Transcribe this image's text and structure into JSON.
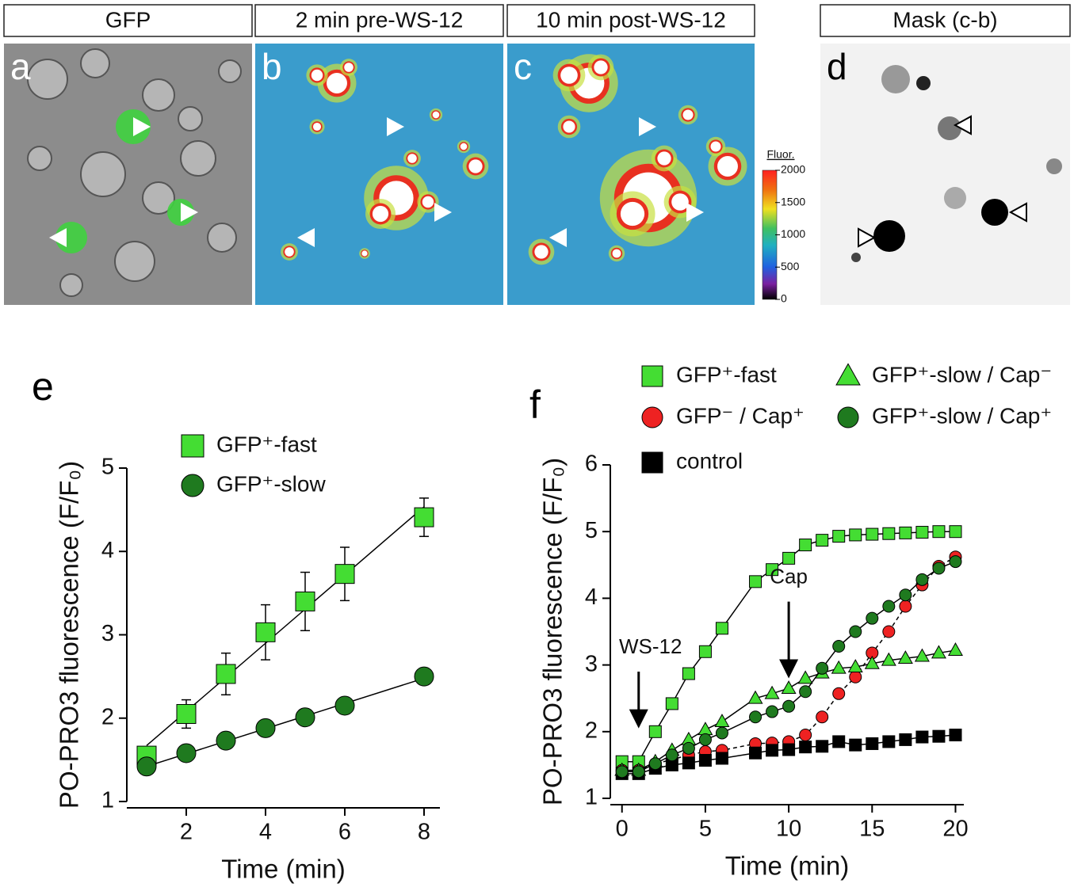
{
  "panels": [
    {
      "header": "GFP",
      "letter": "a"
    },
    {
      "header": "2 min pre-WS-12",
      "letter": "b"
    },
    {
      "header": "10 min post-WS-12",
      "letter": "c"
    },
    {
      "header": "Mask (c-b)",
      "letter": "d"
    }
  ],
  "colorbar": {
    "title": "Fluor.",
    "ticks": [
      0,
      500,
      1000,
      1500,
      2000
    ]
  },
  "chart_data": [
    {
      "type": "line",
      "panel_label": "e",
      "xlabel": "Time (min)",
      "ylabel": "PO-PRO3 fluorescence (F/F₀)",
      "x": [
        1,
        2,
        3,
        4,
        5,
        6,
        8
      ],
      "series": [
        {
          "name": "GFP⁺-fast",
          "color": "#44dd33",
          "marker": "square",
          "values": [
            1.55,
            2.05,
            2.53,
            3.03,
            3.4,
            3.73,
            4.41
          ],
          "errors": [
            0.1,
            0.17,
            0.25,
            0.33,
            0.35,
            0.32,
            0.23
          ]
        },
        {
          "name": "GFP⁺-slow",
          "color": "#1f7a1f",
          "marker": "circle",
          "values": [
            1.42,
            1.58,
            1.73,
            1.88,
            2.01,
            2.15,
            2.5
          ],
          "errors": [
            0.05,
            0.05,
            0.06,
            0.06,
            0.06,
            0.08,
            0.06
          ]
        }
      ],
      "fit_lines": true,
      "xlim": [
        0.5,
        8.4
      ],
      "xticks": [
        2,
        4,
        6,
        8
      ],
      "ylim": [
        1,
        5
      ],
      "yticks": [
        1,
        2,
        3,
        4,
        5
      ]
    },
    {
      "type": "line",
      "panel_label": "f",
      "xlabel": "Time (min)",
      "ylabel": "PO-PRO3 fluorescence (F/F₀)",
      "x": [
        0,
        1,
        2,
        3,
        4,
        5,
        6,
        8,
        9,
        10,
        11,
        12,
        13,
        14,
        15,
        16,
        17,
        18,
        19,
        20
      ],
      "series": [
        {
          "name": "GFP⁺-fast",
          "color": "#44dd33",
          "marker": "square",
          "values": [
            1.55,
            1.55,
            2.0,
            2.42,
            2.87,
            3.2,
            3.55,
            4.25,
            4.43,
            4.6,
            4.8,
            4.87,
            4.93,
            4.95,
            4.96,
            4.97,
            4.98,
            4.99,
            5.0,
            5.0
          ]
        },
        {
          "name": "GFP⁻ / Cap⁺",
          "color": "#ee2222",
          "marker": "circle",
          "dash": true,
          "values": [
            1.42,
            1.42,
            1.52,
            1.58,
            1.65,
            1.7,
            1.72,
            1.82,
            1.83,
            1.85,
            1.95,
            2.22,
            2.57,
            2.82,
            3.18,
            3.5,
            3.88,
            4.2,
            4.48,
            4.62
          ]
        },
        {
          "name": "control",
          "color": "#000000",
          "marker": "square",
          "values": [
            1.37,
            1.37,
            1.45,
            1.5,
            1.53,
            1.57,
            1.6,
            1.68,
            1.72,
            1.73,
            1.77,
            1.78,
            1.85,
            1.8,
            1.82,
            1.85,
            1.88,
            1.92,
            1.93,
            1.95
          ]
        },
        {
          "name": "GFP⁺-slow / Cap⁻",
          "color": "#44dd33",
          "marker": "triangle",
          "values": [
            1.42,
            1.42,
            1.55,
            1.72,
            1.88,
            2.03,
            2.15,
            2.5,
            2.57,
            2.65,
            2.8,
            2.88,
            2.95,
            2.97,
            3.02,
            3.07,
            3.1,
            3.13,
            3.18,
            3.22
          ]
        },
        {
          "name": "GFP⁺-slow / Cap⁺",
          "color": "#1f7a1f",
          "marker": "circle",
          "values": [
            1.4,
            1.4,
            1.52,
            1.65,
            1.75,
            1.88,
            1.98,
            2.22,
            2.3,
            2.38,
            2.6,
            2.95,
            3.28,
            3.5,
            3.7,
            3.88,
            4.05,
            4.28,
            4.45,
            4.55
          ]
        }
      ],
      "annotations": [
        {
          "text": "WS-12",
          "x": 1
        },
        {
          "text": "Cap",
          "x": 10
        }
      ],
      "xlim": [
        -0.7,
        20.5
      ],
      "xticks": [
        0,
        5,
        10,
        15,
        20
      ],
      "ylim": [
        1,
        6
      ],
      "yticks": [
        1,
        2,
        3,
        4,
        5,
        6
      ]
    }
  ]
}
